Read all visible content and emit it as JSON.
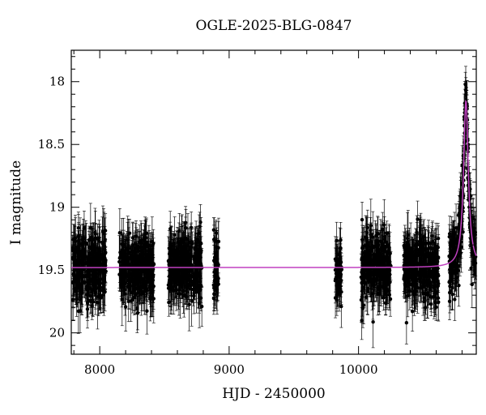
{
  "chart_data": {
    "type": "scatter",
    "title": "OGLE-2025-BLG-0847",
    "xlabel": "HJD - 2450000",
    "ylabel": "I magnitude",
    "xlim": [
      7780,
      10910
    ],
    "ylim": [
      20.17,
      17.75
    ],
    "y_inverted": true,
    "grid": false,
    "x_ticks": [
      8000,
      9000,
      10000
    ],
    "x_tick_labels": [
      "8000",
      "9000",
      "10000"
    ],
    "y_ticks": [
      18,
      18.5,
      19,
      19.5,
      20
    ],
    "y_tick_labels": [
      "18",
      "18.5",
      "19",
      "19.5",
      "20"
    ],
    "series": [
      {
        "kind": "photometry",
        "color": "#000000",
        "errorbars": true,
        "baseline_mag": 19.48,
        "typical_error": 0.15,
        "seasons": [
          {
            "x_range": [
              7790,
              8050
            ],
            "mag_range": [
              19.05,
              19.95
            ]
          },
          {
            "x_range": [
              8150,
              8420
            ],
            "mag_range": [
              19.05,
              19.95
            ]
          },
          {
            "x_range": [
              8530,
              8790
            ],
            "mag_range": [
              19.0,
              19.95
            ]
          },
          {
            "x_range": [
              8880,
              8920
            ],
            "mag_range": [
              19.15,
              19.75
            ]
          },
          {
            "x_range": [
              9820,
              9870
            ],
            "mag_range": [
              19.05,
              19.95
            ]
          },
          {
            "x_range": [
              10020,
              10250
            ],
            "mag_range": [
              19.1,
              19.95
            ]
          },
          {
            "x_range": [
              10350,
              10620
            ],
            "mag_range": [
              19.1,
              20.0
            ]
          },
          {
            "x_range": [
              10700,
              10905
            ],
            "mag_range": [
              19.15,
              19.95
            ]
          }
        ]
      },
      {
        "kind": "model",
        "color": "#c040c0",
        "baseline_mag": 19.48,
        "peak_time": 10830,
        "peak_mag": 18.15,
        "time_scale": 22
      }
    ]
  }
}
